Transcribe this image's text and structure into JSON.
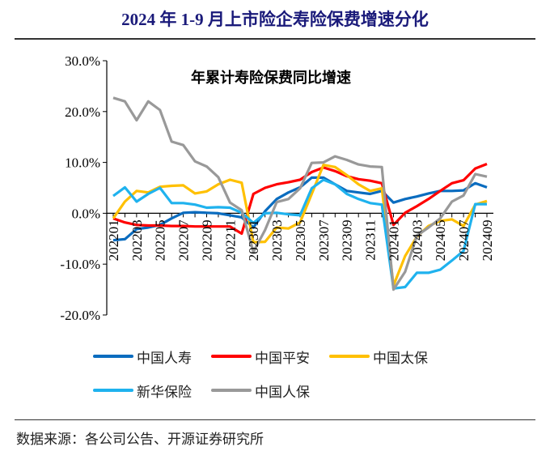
{
  "title": "2024 年 1-9 月上市险企寿险保费增速分化",
  "source": "数据来源：各公司公告、开源证券研究所",
  "chart_data": {
    "type": "line",
    "title": "年累计寿险保费同比增速",
    "xlabel": "",
    "ylabel": "",
    "ylim": [
      -20,
      30
    ],
    "yticks": [
      30,
      20,
      10,
      0,
      -10,
      -20
    ],
    "ytick_labels": [
      "30.0%",
      "20.0%",
      "10.0%",
      "0.0%",
      "-10.0%",
      "-20.0%"
    ],
    "x": [
      "202201",
      "202202",
      "202203",
      "202204",
      "202205",
      "202206",
      "202207",
      "202208",
      "202209",
      "202210",
      "202211",
      "202212",
      "202301",
      "202302",
      "202303",
      "202304",
      "202305",
      "202306",
      "202307",
      "202308",
      "202309",
      "202310",
      "202311",
      "202312",
      "202401",
      "202402",
      "202403",
      "202404",
      "202405",
      "202406",
      "202407",
      "202408",
      "202409"
    ],
    "xtick_labels": [
      "202201",
      "202203",
      "202205",
      "202207",
      "202209",
      "202211",
      "202301",
      "202303",
      "202305",
      "202307",
      "202309",
      "202311",
      "202401",
      "202403",
      "202405",
      "202407",
      "202409"
    ],
    "grid": false,
    "legend": "bottom",
    "series": [
      {
        "name": "中国人寿",
        "color": "#0a6cbf",
        "values": [
          -5.3,
          -5.1,
          -3.1,
          -2.8,
          -2.3,
          -1.0,
          0.1,
          0.2,
          0.1,
          0.0,
          -0.4,
          -0.8,
          -2.8,
          0.4,
          2.8,
          4.1,
          5.1,
          7.0,
          7.0,
          5.7,
          4.4,
          4.1,
          3.8,
          4.4,
          2.1,
          2.8,
          3.3,
          3.9,
          4.4,
          4.4,
          4.5,
          5.9,
          5.1
        ]
      },
      {
        "name": "中国平安",
        "color": "#ff0000",
        "values": [
          -1.0,
          -1.8,
          -2.3,
          -2.4,
          -2.4,
          -2.5,
          -2.5,
          -2.6,
          -2.6,
          -2.6,
          -2.6,
          -4.0,
          3.8,
          5.0,
          5.7,
          6.1,
          6.6,
          8.1,
          9.0,
          8.3,
          7.3,
          6.7,
          6.4,
          5.9,
          -2.3,
          0.1,
          1.4,
          2.8,
          4.4,
          5.9,
          6.5,
          8.8,
          9.7
        ]
      },
      {
        "name": "中国太保",
        "color": "#ffc000",
        "values": [
          -1.0,
          2.3,
          4.4,
          4.1,
          5.2,
          5.4,
          5.5,
          3.9,
          4.3,
          5.7,
          6.6,
          6.0,
          -5.7,
          -5.6,
          -2.8,
          -3.0,
          -1.8,
          3.8,
          9.5,
          9.1,
          7.5,
          5.7,
          4.4,
          4.9,
          -14.2,
          -8.4,
          -4.6,
          -2.5,
          -1.5,
          -1.2,
          -2.5,
          1.7,
          2.4
        ]
      },
      {
        "name": "新华保险",
        "color": "#1fb2ee",
        "values": [
          3.4,
          5.1,
          2.3,
          3.8,
          5.0,
          2.0,
          2.0,
          1.7,
          1.1,
          1.2,
          1.1,
          0.1,
          -1.9,
          0.0,
          0.1,
          -0.2,
          -0.4,
          4.9,
          6.6,
          5.7,
          3.8,
          2.8,
          2.0,
          1.7,
          -14.8,
          -14.5,
          -11.7,
          -11.7,
          -11.1,
          -9.3,
          -7.4,
          1.8,
          1.8
        ]
      },
      {
        "name": "中国人保",
        "color": "#999999",
        "values": [
          22.7,
          22.0,
          18.3,
          22.0,
          20.3,
          14.1,
          13.4,
          10.2,
          9.2,
          7.1,
          2.1,
          0.6,
          -7.6,
          -3.3,
          2.2,
          2.8,
          4.9,
          9.9,
          10.0,
          11.2,
          10.5,
          9.6,
          9.2,
          9.1,
          -15.0,
          -11.5,
          -4.4,
          -2.8,
          -1.0,
          2.3,
          3.5,
          7.7,
          7.2
        ]
      }
    ]
  }
}
